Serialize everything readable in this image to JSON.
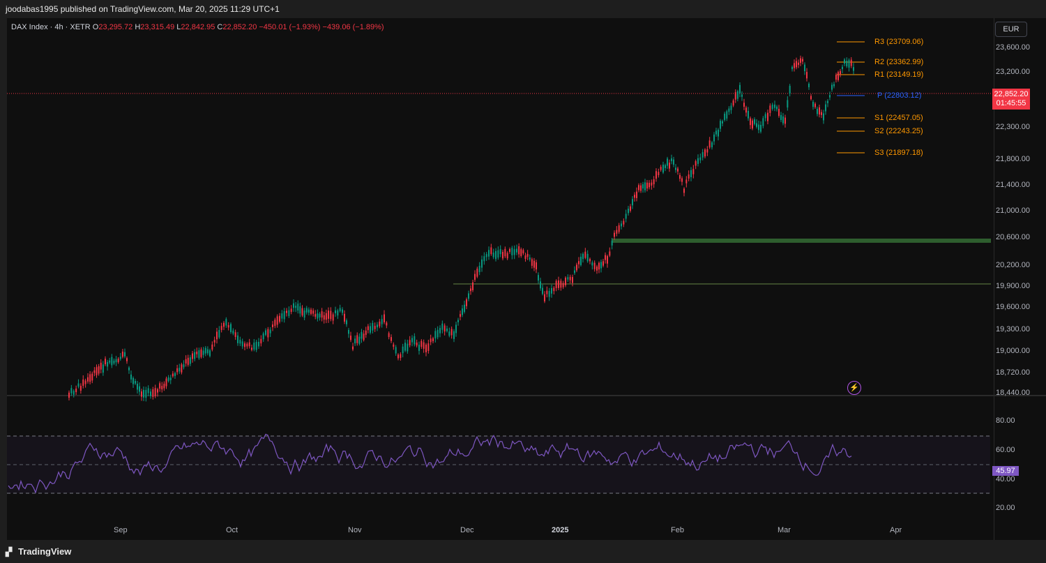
{
  "header": {
    "published": "joodabas1995 published on TradingView.com, Mar 20, 2025 11:29 UTC+1"
  },
  "legend": {
    "symbol": "DAX Index · 4h · XETR",
    "o_label": "O",
    "o": "23,295.72",
    "h_label": "H",
    "h": "23,315.49",
    "l_label": "L",
    "l": "22,842.95",
    "c_label": "C",
    "c": "22,852.20",
    "change": "−450.01 (−1.93%)",
    "change2": "−439.06 (−1.89%)"
  },
  "currency": "EUR",
  "price_axis": [
    "23,600.00",
    "23,200.00",
    "22,300.00",
    "21,800.00",
    "21,400.00",
    "21,000.00",
    "20,600.00",
    "20,200.00",
    "19,900.00",
    "19,600.00",
    "19,300.00",
    "19,000.00",
    "18,720.00",
    "18,440.00"
  ],
  "last_price": {
    "price": "22,852.20",
    "countdown": "01:45:55"
  },
  "pivots": [
    {
      "label": "R3 (23709.06)",
      "type": "r"
    },
    {
      "label": "R2 (23362.99)",
      "type": "r"
    },
    {
      "label": "R1 (23149.19)",
      "type": "r"
    },
    {
      "label": "P (22803.12)",
      "type": "p"
    },
    {
      "label": "S1 (22457.05)",
      "type": "s"
    },
    {
      "label": "S2 (22243.25)",
      "type": "s"
    },
    {
      "label": "S3 (21897.18)",
      "type": "s"
    }
  ],
  "rsi": {
    "axis": [
      "80.00",
      "60.00",
      "40.00",
      "20.00"
    ],
    "value": "45.97"
  },
  "time_axis": [
    "Sep",
    "Oct",
    "Nov",
    "Dec",
    "2025",
    "Feb",
    "Mar",
    "Apr"
  ],
  "footer": {
    "brand": "TradingView"
  },
  "colors": {
    "up": "#089981",
    "down": "#f23645",
    "pivot": "#ff9800",
    "pivot_p": "#2962ff",
    "rsi": "#7e57c2",
    "zone": "#2e5e2e"
  },
  "icons": {
    "alert": "lightning-alert-icon",
    "logo": "tradingview-logo-icon"
  }
}
